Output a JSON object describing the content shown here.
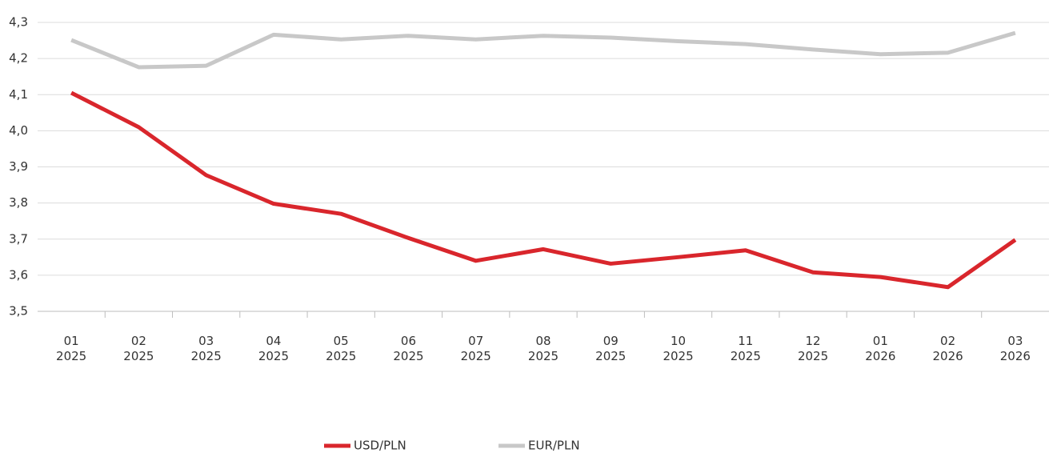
{
  "chart_data": {
    "type": "line",
    "categories": [
      "01\n2025",
      "02\n2025",
      "03\n2025",
      "04\n2025",
      "05\n2025",
      "06\n2025",
      "07\n2025",
      "08\n2025",
      "09\n2025",
      "10\n2025",
      "11\n2025",
      "12\n2025",
      "01\n2026",
      "02\n2026",
      "03\n2026"
    ],
    "series": [
      {
        "name": "USD/PLN",
        "color": "#d9262c",
        "values": [
          4.105,
          4.01,
          3.877,
          3.798,
          3.77,
          3.703,
          3.64,
          3.672,
          3.632,
          3.65,
          3.669,
          3.608,
          3.595,
          3.567,
          3.698
        ]
      },
      {
        "name": "EUR/PLN",
        "color": "#c8c8c8",
        "values": [
          4.251,
          4.176,
          4.18,
          4.266,
          4.253,
          4.263,
          4.253,
          4.263,
          4.258,
          4.248,
          4.24,
          4.225,
          4.212,
          4.216,
          4.271
        ]
      }
    ],
    "ylim": [
      3.5,
      4.3
    ],
    "yticks": [
      {
        "value": 3.5,
        "label": "3,5"
      },
      {
        "value": 3.6,
        "label": "3,6"
      },
      {
        "value": 3.7,
        "label": "3,7"
      },
      {
        "value": 3.8,
        "label": "3,8"
      },
      {
        "value": 3.9,
        "label": "3,9"
      },
      {
        "value": 4.0,
        "label": "4,0"
      },
      {
        "value": 4.1,
        "label": "4,1"
      },
      {
        "value": 4.2,
        "label": "4,2"
      },
      {
        "value": 4.3,
        "label": "4,3"
      }
    ],
    "grid": true
  }
}
